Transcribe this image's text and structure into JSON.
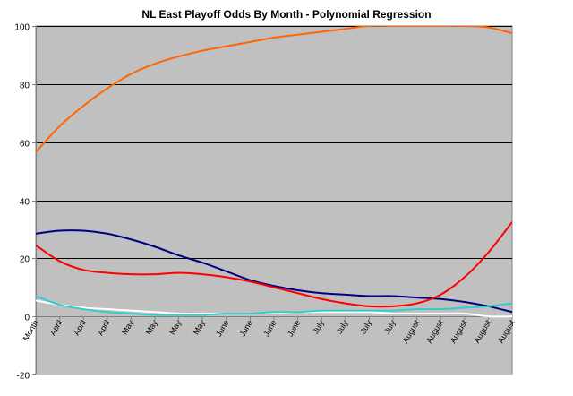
{
  "chart_data": {
    "type": "line",
    "title": "NL East Playoff Odds By Month - Polynomial Regression",
    "xlabel": "",
    "ylabel": "",
    "ylim": [
      -20,
      100
    ],
    "yticks": [
      -20,
      0,
      20,
      40,
      60,
      80,
      100
    ],
    "grid": true,
    "legend": "none",
    "categories": [
      "Month",
      "April",
      "April",
      "April",
      "May",
      "May",
      "May",
      "May",
      "June",
      "June",
      "June",
      "June",
      "July",
      "July",
      "July",
      "July",
      "August",
      "August",
      "August",
      "August",
      "August"
    ],
    "series": [
      {
        "color": "#ff6600",
        "values": [
          56.5,
          65.5,
          72.5,
          78.5,
          83.5,
          87.0,
          89.5,
          91.5,
          93.0,
          94.5,
          96.0,
          97.0,
          98.0,
          99.0,
          100.0,
          100.0,
          100.0,
          100.0,
          100.0,
          99.5,
          97.5
        ]
      },
      {
        "color": "#000080",
        "values": [
          28.5,
          29.5,
          29.5,
          28.5,
          26.5,
          24.0,
          21.0,
          18.5,
          15.5,
          12.5,
          10.5,
          9.0,
          8.0,
          7.5,
          7.0,
          7.0,
          6.5,
          6.0,
          5.0,
          3.5,
          1.5
        ]
      },
      {
        "color": "#ff0000",
        "values": [
          24.5,
          19.0,
          16.0,
          15.0,
          14.5,
          14.5,
          15.0,
          14.5,
          13.5,
          12.0,
          10.0,
          8.0,
          6.0,
          4.5,
          3.5,
          3.5,
          4.5,
          7.5,
          13.5,
          22.0,
          32.5
        ]
      },
      {
        "color": "#ffffff",
        "values": [
          5.5,
          4.0,
          3.0,
          2.5,
          2.0,
          1.5,
          1.0,
          1.0,
          1.0,
          1.0,
          1.0,
          1.5,
          1.5,
          1.5,
          1.5,
          1.0,
          1.0,
          1.0,
          1.0,
          0.0,
          0.0
        ]
      },
      {
        "color": "#33cccc",
        "values": [
          7.0,
          4.0,
          2.5,
          1.5,
          1.0,
          0.5,
          0.5,
          0.5,
          1.0,
          1.0,
          1.5,
          1.5,
          2.0,
          2.0,
          2.0,
          2.0,
          2.5,
          2.5,
          3.0,
          3.5,
          4.5
        ]
      }
    ]
  },
  "colors": {
    "plot_background": "#c0c0c0",
    "gridline": "#000000",
    "axis": "#808080"
  }
}
